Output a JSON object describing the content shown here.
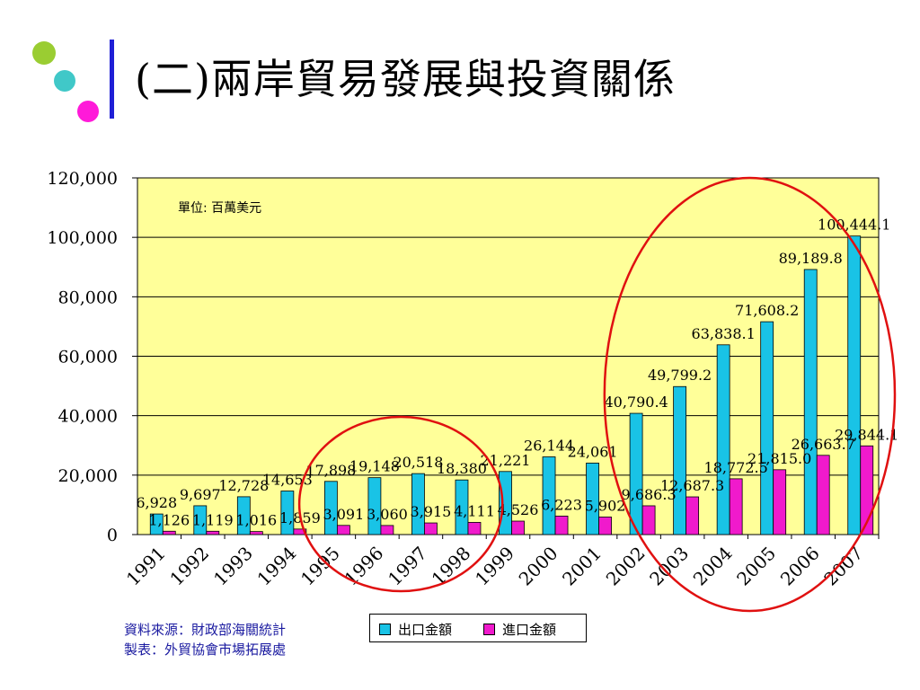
{
  "slide": {
    "title": "(二)兩岸貿易發展與投資關係",
    "dots": {
      "colors": [
        "#9acd32",
        "#40c8c8",
        "#ff1ad9"
      ]
    },
    "accent_bar_color": "#1f1fd6"
  },
  "chart_data": {
    "type": "bar",
    "unit_note": "單位: 百萬美元",
    "categories": [
      "1991",
      "1992",
      "1993",
      "1994",
      "1995",
      "1996",
      "1997",
      "1998",
      "1999",
      "2000",
      "2001",
      "2002",
      "2003",
      "2004",
      "2005",
      "2006",
      "2007"
    ],
    "series": [
      {
        "name": "出口金額",
        "color": "#19c3e6",
        "values": [
          6928,
          9697,
          12728,
          14653,
          17898,
          19148,
          20518,
          18380,
          21221,
          26144,
          24061,
          40790.4,
          49799.2,
          63838.1,
          71608.2,
          89189.8,
          100444.1
        ],
        "labels": [
          "6,928",
          "9,697",
          "12,728",
          "14,653",
          "17,898",
          "19,148",
          "20,518",
          "18,380",
          "21,221",
          "26,144",
          "24,061",
          "40,790.4",
          "49,799.2",
          "63,838.1",
          "71,608.2",
          "89,189.8",
          "100,444.1"
        ]
      },
      {
        "name": "進口金額",
        "color": "#f01acc",
        "values": [
          1126,
          1119,
          1016,
          1859,
          3091,
          3060,
          3915,
          4111,
          4526,
          6223,
          5902,
          9686.3,
          12687.3,
          18772.5,
          21815.0,
          26663.7,
          29844.1
        ],
        "labels": [
          "1,126",
          "1,119",
          "1,016",
          "1,859",
          "3,091",
          "3,060",
          "3,915",
          "4,111",
          "4,526",
          "6,223",
          "5,902",
          "9,686.3",
          "12,687.3",
          "18,772.5",
          "21,815.0",
          "26,663.7",
          "29,844.1"
        ]
      }
    ],
    "ylim": [
      0,
      120000
    ],
    "yticks": [
      0,
      20000,
      40000,
      60000,
      80000,
      100000,
      120000
    ],
    "ytick_labels": [
      "0",
      "20,000",
      "40,000",
      "60,000",
      "80,000",
      "100,000",
      "120,000"
    ],
    "grid": true,
    "plot_background": "#ffff99",
    "legend_position": "bottom",
    "highlight_ellipses": [
      {
        "color": "#e01010",
        "years": [
          "1995",
          "1998"
        ]
      },
      {
        "color": "#e01010",
        "years": [
          "2002",
          "2007"
        ]
      }
    ]
  },
  "footer": {
    "source_line1": "資料來源：財政部海關統計",
    "source_line2": "製表：外貿協會市場拓展處"
  }
}
